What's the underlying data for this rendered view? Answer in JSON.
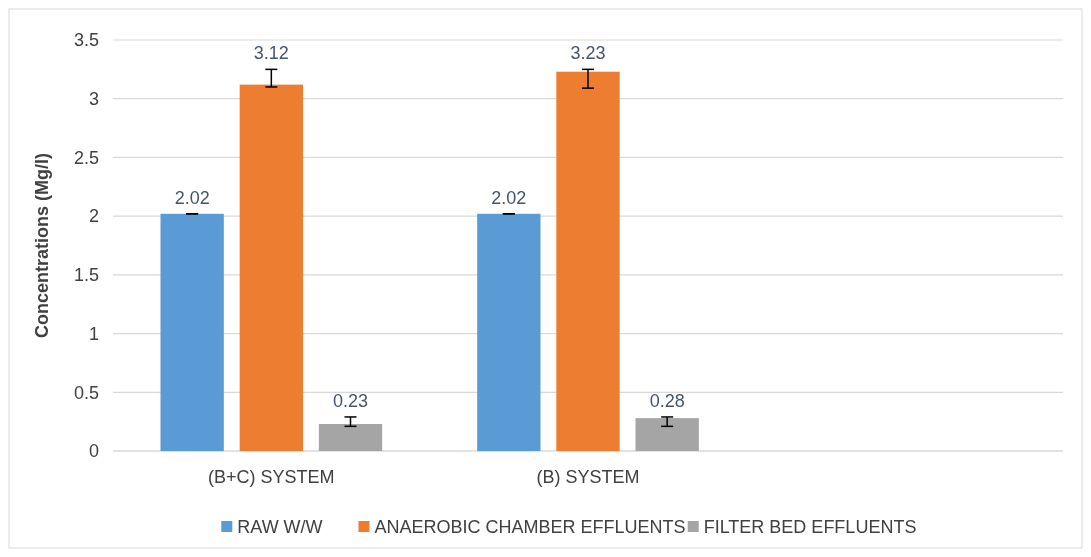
{
  "chart_data": {
    "type": "bar",
    "ylabel": "Concentrations (Mg/l)",
    "categories": [
      "(B+C) SYSTEM",
      "(B) SYSTEM",
      null
    ],
    "series": [
      {
        "name": "RAW W/W",
        "color": "#5b9bd5",
        "values": [
          2.02,
          2.02,
          null
        ],
        "errors": [
          0,
          0,
          null
        ]
      },
      {
        "name": "ANAEROBIC CHAMBER EFFLUENTS",
        "color": "#ed7d31",
        "values": [
          3.12,
          3.23,
          null
        ],
        "errors": [
          [
            3.1,
            3.25
          ],
          [
            3.09,
            3.25
          ],
          null
        ]
      },
      {
        "name": "FILTER BED EFFLUENTS",
        "color": "#a5a5a5",
        "values": [
          0.23,
          0.28,
          null
        ],
        "errors": [
          [
            0.21,
            0.29
          ],
          [
            0.21,
            0.29
          ],
          null
        ]
      }
    ],
    "ylim": [
      0,
      3.5
    ],
    "yticks": [
      0,
      0.5,
      1,
      1.5,
      2,
      2.5,
      3,
      3.5
    ],
    "grid": "y",
    "legend": "bottom",
    "data_labels": true
  }
}
